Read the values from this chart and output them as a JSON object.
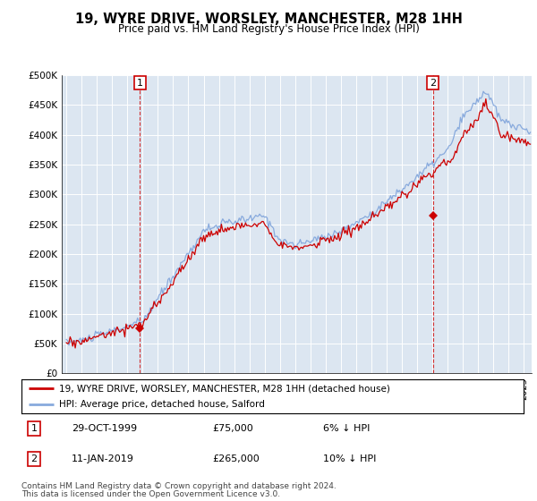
{
  "title": "19, WYRE DRIVE, WORSLEY, MANCHESTER, M28 1HH",
  "subtitle": "Price paid vs. HM Land Registry's House Price Index (HPI)",
  "line1_label": "19, WYRE DRIVE, WORSLEY, MANCHESTER, M28 1HH (detached house)",
  "line2_label": "HPI: Average price, detached house, Salford",
  "line1_color": "#cc0000",
  "line2_color": "#88aadd",
  "background_color": "#dce6f1",
  "purchase1": {
    "date": "29-OCT-1999",
    "price": 75000,
    "label": "1",
    "year": 1999.83
  },
  "purchase2": {
    "date": "11-JAN-2019",
    "price": 265000,
    "label": "2",
    "year": 2019.03
  },
  "note1": "6% ↓ HPI",
  "note2": "10% ↓ HPI",
  "footer1": "Contains HM Land Registry data © Crown copyright and database right 2024.",
  "footer2": "This data is licensed under the Open Government Licence v3.0.",
  "ylim": [
    0,
    500000
  ],
  "yticks": [
    0,
    50000,
    100000,
    150000,
    200000,
    250000,
    300000,
    350000,
    400000,
    450000,
    500000
  ],
  "ytick_labels": [
    "£0",
    "£50K",
    "£100K",
    "£150K",
    "£200K",
    "£250K",
    "£300K",
    "£350K",
    "£400K",
    "£450K",
    "£500K"
  ]
}
